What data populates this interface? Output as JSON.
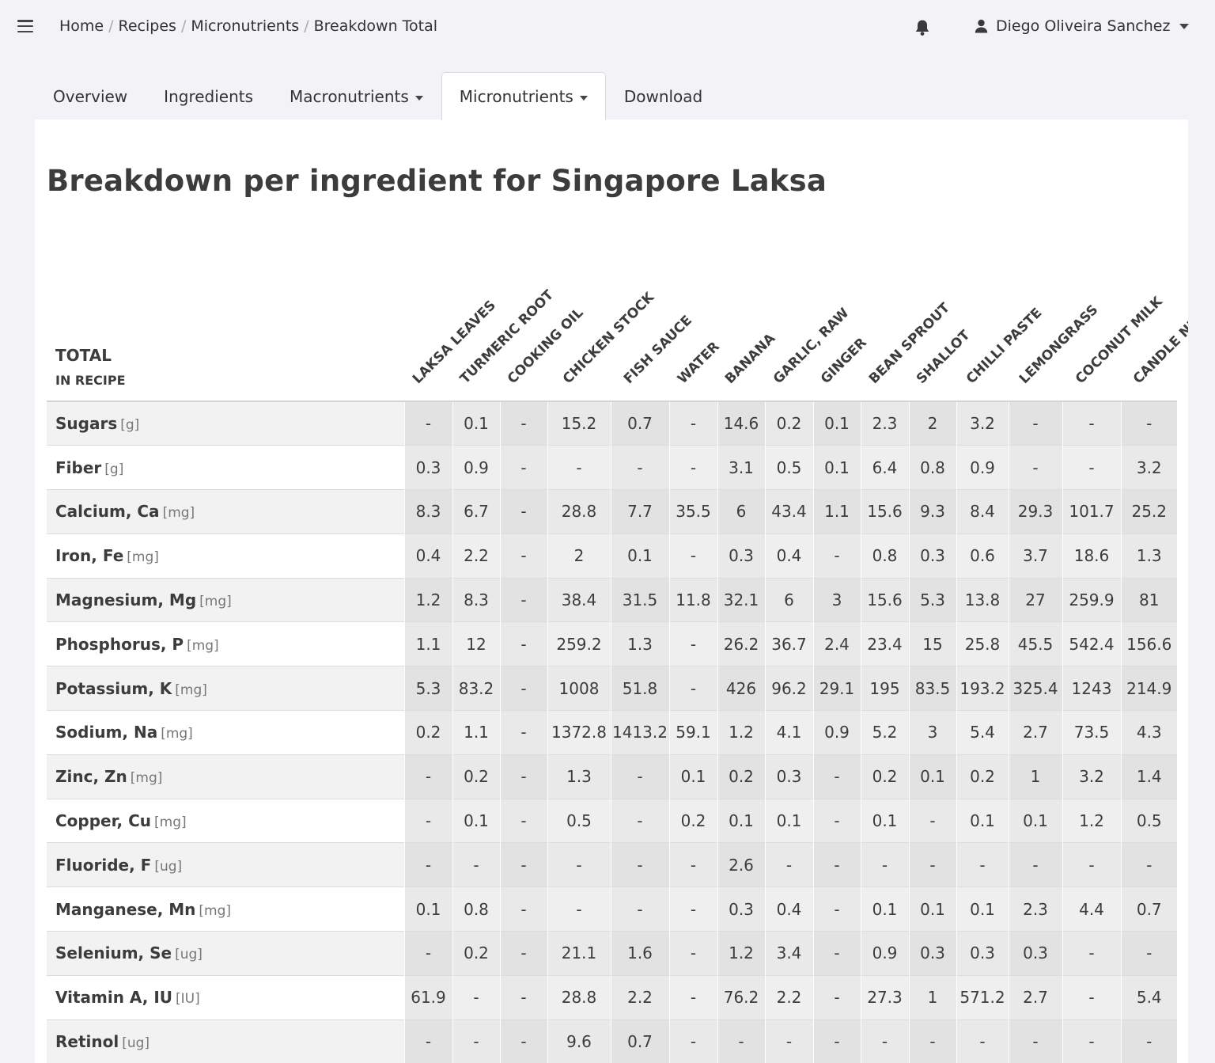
{
  "breadcrumb": [
    "Home",
    "Recipes",
    "Micronutrients",
    "Breakdown Total"
  ],
  "user": {
    "name": "Diego Oliveira Sanchez"
  },
  "tabs": [
    {
      "label": "Overview",
      "dropdown": false,
      "active": false
    },
    {
      "label": "Ingredients",
      "dropdown": false,
      "active": false
    },
    {
      "label": "Macronutrients",
      "dropdown": true,
      "active": false
    },
    {
      "label": "Micronutrients",
      "dropdown": true,
      "active": true
    },
    {
      "label": "Download",
      "dropdown": false,
      "active": false
    }
  ],
  "page_title": "Breakdown per ingredient for Singapore Laksa",
  "table": {
    "total_label": "TOTAL",
    "in_recipe_label": "IN RECIPE",
    "columns": [
      "LAKSA LEAVES",
      "TURMERIC ROOT",
      "COOKING OIL",
      "CHICKEN STOCK",
      "FISH SAUCE",
      "WATER",
      "BANANA",
      "GARLIC, RAW",
      "GINGER",
      "BEAN SPROUT",
      "SHALLOT",
      "CHILLI PASTE",
      "LEMONGRASS",
      "COCONUT MILK",
      "CANDLE NUT"
    ],
    "rows": [
      {
        "name": "Sugars",
        "unit": "[g]",
        "values": [
          "-",
          "0.1",
          "-",
          "15.2",
          "0.7",
          "-",
          "14.6",
          "0.2",
          "0.1",
          "2.3",
          "2",
          "3.2",
          "-",
          "-",
          "-"
        ]
      },
      {
        "name": "Fiber",
        "unit": "[g]",
        "values": [
          "0.3",
          "0.9",
          "-",
          "-",
          "-",
          "-",
          "3.1",
          "0.5",
          "0.1",
          "6.4",
          "0.8",
          "0.9",
          "-",
          "-",
          "3.2"
        ]
      },
      {
        "name": "Calcium, Ca",
        "unit": "[mg]",
        "values": [
          "8.3",
          "6.7",
          "-",
          "28.8",
          "7.7",
          "35.5",
          "6",
          "43.4",
          "1.1",
          "15.6",
          "9.3",
          "8.4",
          "29.3",
          "101.7",
          "25.2"
        ]
      },
      {
        "name": "Iron, Fe",
        "unit": "[mg]",
        "values": [
          "0.4",
          "2.2",
          "-",
          "2",
          "0.1",
          "-",
          "0.3",
          "0.4",
          "-",
          "0.8",
          "0.3",
          "0.6",
          "3.7",
          "18.6",
          "1.3"
        ]
      },
      {
        "name": "Magnesium, Mg",
        "unit": "[mg]",
        "values": [
          "1.2",
          "8.3",
          "-",
          "38.4",
          "31.5",
          "11.8",
          "32.1",
          "6",
          "3",
          "15.6",
          "5.3",
          "13.8",
          "27",
          "259.9",
          "81"
        ]
      },
      {
        "name": "Phosphorus, P",
        "unit": "[mg]",
        "values": [
          "1.1",
          "12",
          "-",
          "259.2",
          "1.3",
          "-",
          "26.2",
          "36.7",
          "2.4",
          "23.4",
          "15",
          "25.8",
          "45.5",
          "542.4",
          "156.6"
        ]
      },
      {
        "name": "Potassium, K",
        "unit": "[mg]",
        "values": [
          "5.3",
          "83.2",
          "-",
          "1008",
          "51.8",
          "-",
          "426",
          "96.2",
          "29.1",
          "195",
          "83.5",
          "193.2",
          "325.4",
          "1243",
          "214.9"
        ]
      },
      {
        "name": "Sodium, Na",
        "unit": "[mg]",
        "values": [
          "0.2",
          "1.1",
          "-",
          "1372.8",
          "1413.2",
          "59.1",
          "1.2",
          "4.1",
          "0.9",
          "5.2",
          "3",
          "5.4",
          "2.7",
          "73.5",
          "4.3"
        ]
      },
      {
        "name": "Zinc, Zn",
        "unit": "[mg]",
        "values": [
          "-",
          "0.2",
          "-",
          "1.3",
          "-",
          "0.1",
          "0.2",
          "0.3",
          "-",
          "0.2",
          "0.1",
          "0.2",
          "1",
          "3.2",
          "1.4"
        ]
      },
      {
        "name": "Copper, Cu",
        "unit": "[mg]",
        "values": [
          "-",
          "0.1",
          "-",
          "0.5",
          "-",
          "0.2",
          "0.1",
          "0.1",
          "-",
          "0.1",
          "-",
          "0.1",
          "0.1",
          "1.2",
          "0.5"
        ]
      },
      {
        "name": "Fluoride, F",
        "unit": "[ug]",
        "values": [
          "-",
          "-",
          "-",
          "-",
          "-",
          "-",
          "2.6",
          "-",
          "-",
          "-",
          "-",
          "-",
          "-",
          "-",
          "-"
        ]
      },
      {
        "name": "Manganese, Mn",
        "unit": "[mg]",
        "values": [
          "0.1",
          "0.8",
          "-",
          "-",
          "-",
          "-",
          "0.3",
          "0.4",
          "-",
          "0.1",
          "0.1",
          "0.1",
          "2.3",
          "4.4",
          "0.7"
        ]
      },
      {
        "name": "Selenium, Se",
        "unit": "[ug]",
        "values": [
          "-",
          "0.2",
          "-",
          "21.1",
          "1.6",
          "-",
          "1.2",
          "3.4",
          "-",
          "0.9",
          "0.3",
          "0.3",
          "0.3",
          "-",
          "-"
        ]
      },
      {
        "name": "Vitamin A, IU",
        "unit": "[IU]",
        "values": [
          "61.9",
          "-",
          "-",
          "28.8",
          "2.2",
          "-",
          "76.2",
          "2.2",
          "-",
          "27.3",
          "1",
          "571.2",
          "2.7",
          "-",
          "5.4"
        ]
      },
      {
        "name": "Retinol",
        "unit": "[ug]",
        "values": [
          "-",
          "-",
          "-",
          "9.6",
          "0.7",
          "-",
          "-",
          "-",
          "-",
          "-",
          "-",
          "-",
          "-",
          "-",
          "-"
        ]
      }
    ]
  }
}
